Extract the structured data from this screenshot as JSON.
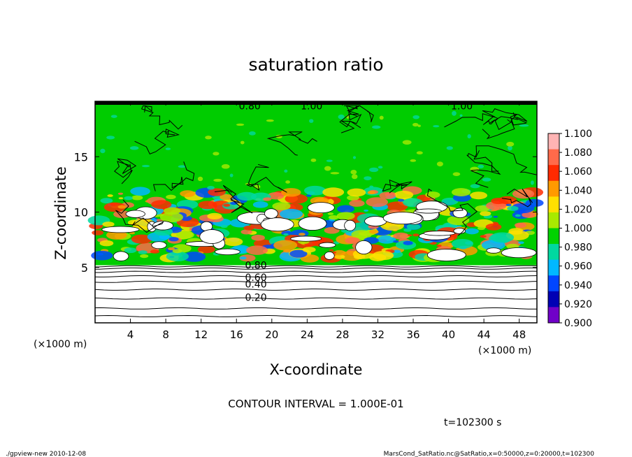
{
  "chart_data": {
    "type": "heatmap",
    "title": "saturation ratio",
    "xlabel": "X-coordinate",
    "ylabel": "Z-coordinate",
    "x_unit": "(×1000 m)",
    "z_unit": "(×1000 m)",
    "xlim": [
      0,
      50
    ],
    "ylim": [
      0,
      20
    ],
    "x_ticks": [
      "4",
      "8",
      "12",
      "16",
      "20",
      "24",
      "28",
      "32",
      "36",
      "40",
      "44",
      "48"
    ],
    "y_ticks": [
      "5",
      "10",
      "15"
    ],
    "colorbar": {
      "labels": [
        "1.100",
        "1.080",
        "1.060",
        "1.040",
        "1.020",
        "1.000",
        "0.980",
        "0.960",
        "0.940",
        "0.920",
        "0.900"
      ],
      "colors": [
        "#ffb4b4",
        "#ff6a4a",
        "#ff2a00",
        "#ff9a00",
        "#ffe000",
        "#a8ea00",
        "#00d200",
        "#00d8a0",
        "#00b8ff",
        "#0046ff",
        "#0000b4",
        "#7000c8"
      ]
    },
    "contour_labels": [
      "0.20",
      "0.40",
      "0.60",
      "0.80",
      "1.00",
      "0.80",
      "1.00"
    ],
    "contour_interval": "CONTOUR INTERVAL = 1.000E-01",
    "time": "t=102300 s"
  },
  "footer": {
    "left": "./gpview-new  2010-12-08",
    "right": "MarsCond_SatRatio.nc@SatRatio,x=0:50000,z=0:20000,t=102300"
  },
  "colors": {
    "green": "#00cc00",
    "white": "#ffffff",
    "black": "#000000"
  }
}
